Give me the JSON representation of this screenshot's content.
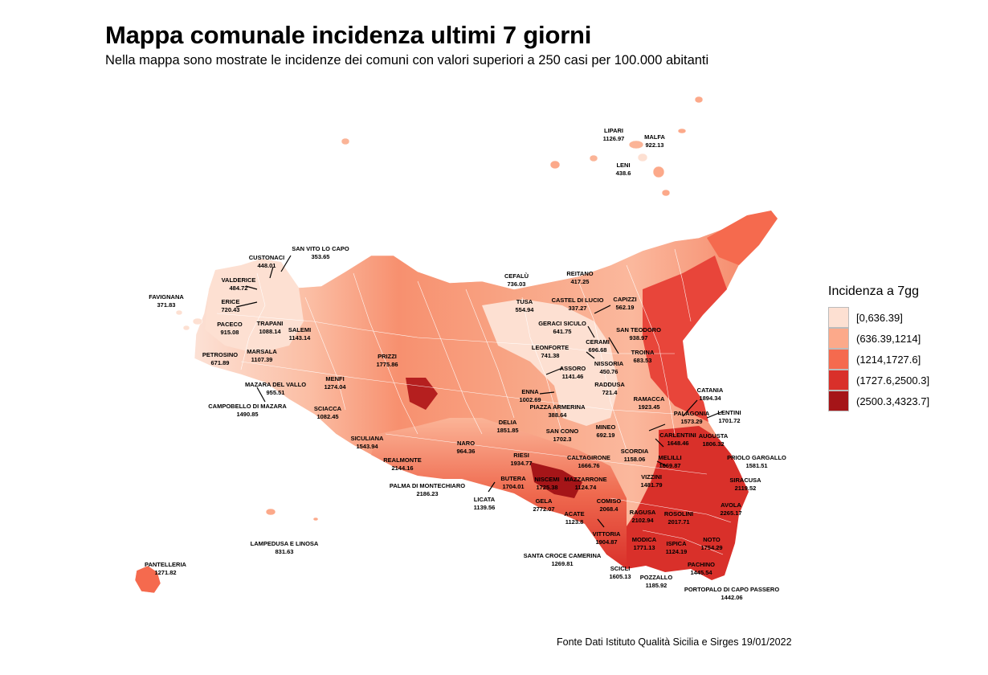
{
  "title": "Mappa comunale incidenza ultimi 7 giorni",
  "subtitle": "Nella mappa sono mostrate le incidenze dei comuni con valori superiori a 250 casi per 100.000 abitanti",
  "legend": {
    "title": "Incidenza a 7gg",
    "items": [
      {
        "label": "[0,636.39]",
        "color": "#fde0d2"
      },
      {
        "label": "(636.39,1214]",
        "color": "#fca98a"
      },
      {
        "label": "(1214,1727.6]",
        "color": "#f56a4e"
      },
      {
        "label": "(1727.6,2500.3]",
        "color": "#d9302a"
      },
      {
        "label": "(2500.3,4323.7]",
        "color": "#a51518"
      }
    ]
  },
  "source": "Fonte Dati Istituto Qualità Sicilia e Sirges 19/01/2022",
  "municipalities": [
    {
      "name": "LIPARI",
      "value": "1126.97"
    },
    {
      "name": "MALFA",
      "value": "922.13"
    },
    {
      "name": "LENI",
      "value": "438.6"
    },
    {
      "name": "SAN VITO LO CAPO",
      "value": "353.65"
    },
    {
      "name": "CUSTONACI",
      "value": "448.01"
    },
    {
      "name": "CEFALÙ",
      "value": "736.03"
    },
    {
      "name": "REITANO",
      "value": "417.25"
    },
    {
      "name": "VALDERICE",
      "value": "484.72"
    },
    {
      "name": "FAVIGNANA",
      "value": "371.83"
    },
    {
      "name": "ERICE",
      "value": "720.43"
    },
    {
      "name": "TUSA",
      "value": "554.94"
    },
    {
      "name": "CASTEL DI LUCIO",
      "value": "337.27"
    },
    {
      "name": "CAPIZZI",
      "value": "562.19"
    },
    {
      "name": "PACECO",
      "value": "915.08"
    },
    {
      "name": "TRAPANI",
      "value": "1088.14"
    },
    {
      "name": "SALEMI",
      "value": "1143.14"
    },
    {
      "name": "GERACI SICULO",
      "value": "641.75"
    },
    {
      "name": "SAN TEODORO",
      "value": "938.97"
    },
    {
      "name": "CERAMI",
      "value": "696.68"
    },
    {
      "name": "TROINA",
      "value": "683.53"
    },
    {
      "name": "LEONFORTE",
      "value": "741.38"
    },
    {
      "name": "PETROSINO",
      "value": "671.89"
    },
    {
      "name": "MARSALA",
      "value": "1107.39"
    },
    {
      "name": "PRIZZI",
      "value": "1775.86"
    },
    {
      "name": "NISSORIA",
      "value": "450.76"
    },
    {
      "name": "ASSORO",
      "value": "1141.46"
    },
    {
      "name": "MENFI",
      "value": "1274.04"
    },
    {
      "name": "MAZARA DEL VALLO",
      "value": "955.51"
    },
    {
      "name": "RADDUSA",
      "value": "721.4"
    },
    {
      "name": "CATANIA",
      "value": "1894.34"
    },
    {
      "name": "ENNA",
      "value": "1002.69"
    },
    {
      "name": "RAMACCA",
      "value": "1923.45"
    },
    {
      "name": "CAMPOBELLO DI MAZARA",
      "value": "1490.85"
    },
    {
      "name": "SCIACCA",
      "value": "1082.45"
    },
    {
      "name": "PIAZZA ARMERINA",
      "value": "388.64"
    },
    {
      "name": "LENTINI",
      "value": "1701.72"
    },
    {
      "name": "PALAGONIA",
      "value": "1573.29"
    },
    {
      "name": "DELIA",
      "value": "1851.85"
    },
    {
      "name": "SICULIANA",
      "value": "1543.94"
    },
    {
      "name": "SAN CONO",
      "value": "1702.3"
    },
    {
      "name": "MINEO",
      "value": "692.19"
    },
    {
      "name": "CARLENTINI",
      "value": "1648.46"
    },
    {
      "name": "AUGUSTA",
      "value": "1806.32"
    },
    {
      "name": "NARO",
      "value": "964.36"
    },
    {
      "name": "SCORDIA",
      "value": "1158.06"
    },
    {
      "name": "RIESI",
      "value": "1934.77"
    },
    {
      "name": "CALTAGIRONE",
      "value": "1666.76"
    },
    {
      "name": "MELILLI",
      "value": "1669.87"
    },
    {
      "name": "PRIOLO GARGALLO",
      "value": "1581.51"
    },
    {
      "name": "REALMONTE",
      "value": "2144.16"
    },
    {
      "name": "BUTERA",
      "value": "1704.01"
    },
    {
      "name": "NISCEMI",
      "value": "1725.38"
    },
    {
      "name": "MAZZARRONE",
      "value": "1124.74"
    },
    {
      "name": "VIZZINI",
      "value": "1481.79"
    },
    {
      "name": "SIRACUSA",
      "value": "2119.52"
    },
    {
      "name": "PALMA DI MONTECHIARO",
      "value": "2186.23"
    },
    {
      "name": "LICATA",
      "value": "1139.56"
    },
    {
      "name": "GELA",
      "value": "2772.07"
    },
    {
      "name": "COMISO",
      "value": "2068.4"
    },
    {
      "name": "AVOLA",
      "value": "2265.17"
    },
    {
      "name": "ACATE",
      "value": "1123.8"
    },
    {
      "name": "RAGUSA",
      "value": "2102.94"
    },
    {
      "name": "ROSOLINI",
      "value": "2017.71"
    },
    {
      "name": "VITTORIA",
      "value": "1904.87"
    },
    {
      "name": "LAMPEDUSA E LINOSA",
      "value": "831.63"
    },
    {
      "name": "MODICA",
      "value": "1771.13"
    },
    {
      "name": "ISPICA",
      "value": "1124.19"
    },
    {
      "name": "NOTO",
      "value": "1754.29"
    },
    {
      "name": "SANTA CROCE CAMERINA",
      "value": "1269.81"
    },
    {
      "name": "PANTELLERIA",
      "value": "1271.82"
    },
    {
      "name": "PACHINO",
      "value": "1445.54"
    },
    {
      "name": "SCICLI",
      "value": "1605.13"
    },
    {
      "name": "POZZALLO",
      "value": "1185.92"
    },
    {
      "name": "PORTOPALO DI CAPO PASSERO",
      "value": "1442.06"
    }
  ]
}
